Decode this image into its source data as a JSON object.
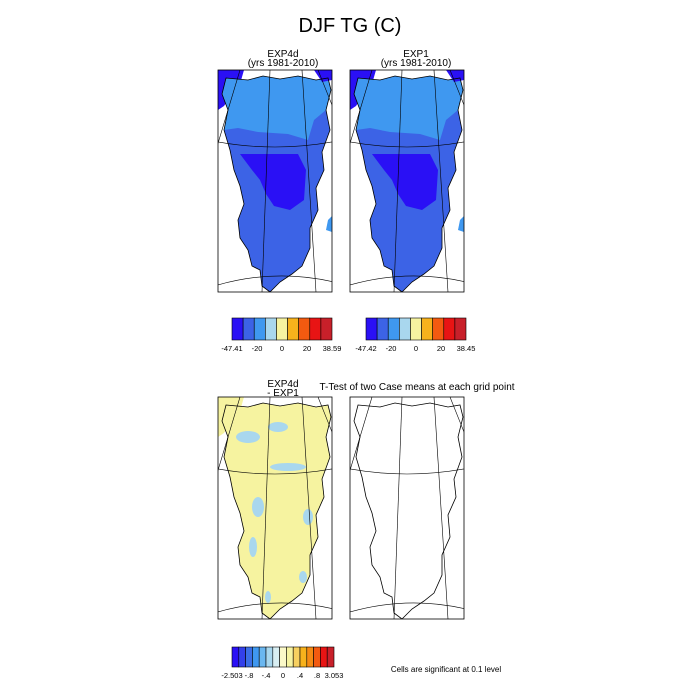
{
  "title": "DJF TG (C)",
  "panels": [
    {
      "title": "EXP4d",
      "subtitle": "(yrs 1981-2010)"
    },
    {
      "title": "EXP1",
      "subtitle": "(yrs 1981-2010)"
    },
    {
      "title": "EXP4d",
      "subtitle": "- EXP1"
    },
    {
      "title": "T-Test of two Case means at each grid point",
      "subtitle": ""
    }
  ],
  "note": "Cells are significant at 0.1 level",
  "chart_data": [
    {
      "type": "heatmap",
      "title": "EXP4d",
      "subtitle": "(yrs 1981-2010)",
      "colorbar": {
        "colors": [
          "#2a10f5",
          "#3c63e6",
          "#3f98f0",
          "#a9d7ee",
          "#f6f3a0",
          "#f7b21c",
          "#f35a10",
          "#e81414",
          "#c8202a"
        ],
        "tick_labels": [
          "-47.41",
          "-20",
          "0",
          "20",
          "38.59"
        ],
        "min": -47.41,
        "max": 38.59
      }
    },
    {
      "type": "heatmap",
      "title": "EXP1",
      "subtitle": "(yrs 1981-2010)",
      "colorbar": {
        "colors": [
          "#2a10f5",
          "#3c63e6",
          "#3f98f0",
          "#a9d7ee",
          "#f6f3a0",
          "#f7b21c",
          "#f35a10",
          "#e81414",
          "#c8202a"
        ],
        "tick_labels": [
          "-47.42",
          "-20",
          "0",
          "20",
          "38.45"
        ],
        "min": -47.42,
        "max": 38.45
      }
    },
    {
      "type": "heatmap",
      "title": "EXP4d",
      "subtitle": "- EXP1",
      "colorbar": {
        "colors": [
          "#2a10f5",
          "#3340ea",
          "#3b6ee6",
          "#3f98f0",
          "#6ab7f0",
          "#a9d7ee",
          "#d8eef2",
          "#fbf9c8",
          "#f6f3a0",
          "#f7d060",
          "#f7b21c",
          "#f58a14",
          "#f35a10",
          "#e81414",
          "#c8202a"
        ],
        "tick_labels": [
          "-2.503",
          "-.8",
          "-.4",
          "0",
          ".4",
          ".8",
          "3.053"
        ],
        "min": -2.503,
        "max": 3.053
      }
    },
    {
      "type": "heatmap",
      "title": "T-Test of two Case means at each grid point",
      "significance_level": 0.1
    }
  ]
}
